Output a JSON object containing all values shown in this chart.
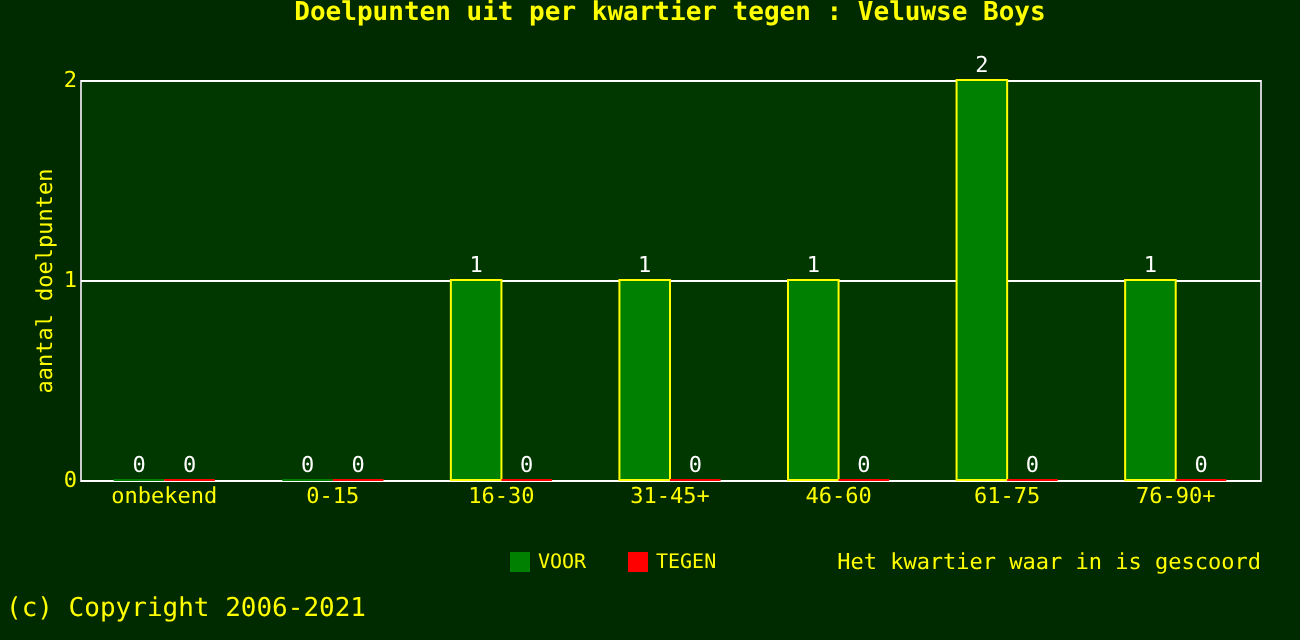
{
  "chart_data": {
    "type": "bar",
    "title": "Doelpunten uit per kwartier tegen : Veluwse Boys",
    "categories": [
      "onbekend",
      "0-15",
      "16-30",
      "31-45+",
      "46-60",
      "61-75",
      "76-90+"
    ],
    "series": [
      {
        "name": "VOOR",
        "color": "#008000",
        "values": [
          0,
          0,
          1,
          1,
          1,
          2,
          1
        ]
      },
      {
        "name": "TEGEN",
        "color": "#ff0000",
        "values": [
          0,
          0,
          0,
          0,
          0,
          0,
          0
        ]
      }
    ],
    "ylim": [
      0,
      2
    ],
    "yticks": [
      0,
      1,
      2
    ],
    "grid": "y",
    "data_labels": true,
    "legend": "bottom",
    "xlabel": "Het kwartier waar in is gescoord",
    "ylabel": "aantal doelpunten",
    "annotations": [
      "(c) Copyright 2006-2021"
    ]
  }
}
